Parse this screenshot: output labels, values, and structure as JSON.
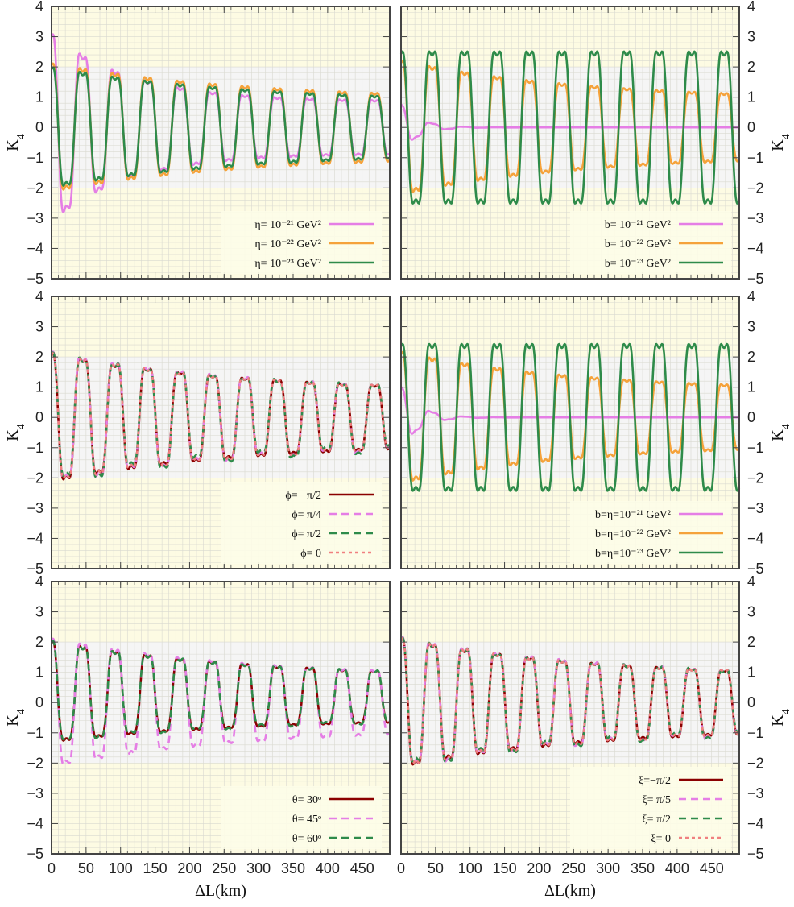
{
  "colors": {
    "panel_bg": "#fdfbe3",
    "band_bg": "#f5f5f5",
    "grid_minor": "#d9d9d0",
    "frame": "#444444",
    "violet": "#e57ee5",
    "orange": "#f5a23a",
    "green": "#2e8b4a",
    "dark_red": "#8b0000",
    "salmon": "#f08080"
  },
  "chart_data": [
    {
      "type": "line",
      "ylabel": "K4",
      "xlabel": "",
      "xlim": [
        0,
        490
      ],
      "ylim": [
        -5,
        4
      ],
      "grid": true,
      "legend_placement": "bottom-right",
      "series": [
        {
          "name": "η= 10⁻²¹ GeV²",
          "color": "#e57ee5",
          "style": "solid",
          "amplitude": 3.6,
          "decay": 0.004,
          "floor": 1.0,
          "offset": 0.0
        },
        {
          "name": "η= 10⁻²² GeV²",
          "color": "#f5a23a",
          "style": "solid",
          "amplitude": 2.45,
          "decay": 0.0016,
          "floor": 1.05,
          "offset": 0.0
        },
        {
          "name": "η= 10⁻²³ GeV²",
          "color": "#2e8b4a",
          "style": "solid",
          "amplitude": 2.3,
          "decay": 0.0016,
          "floor": 0.95,
          "offset": 0.0
        }
      ]
    },
    {
      "type": "line",
      "ylabel": "K4",
      "xlabel": "",
      "xlim": [
        0,
        490
      ],
      "ylim": [
        -5,
        4
      ],
      "grid": true,
      "legend_placement": "bottom-right",
      "series": [
        {
          "name": "b= 10⁻²¹ GeV²",
          "color": "#e57ee5",
          "style": "solid",
          "amplitude": 0.9,
          "decay": 0.018,
          "floor": 0.0,
          "offset": 0.0
        },
        {
          "name": "b= 10⁻²² GeV²",
          "color": "#f5a23a",
          "style": "solid",
          "amplitude": 2.55,
          "decay": 0.0017,
          "floor": 1.05,
          "offset": 0.0
        },
        {
          "name": "b= 10⁻²³ GeV²",
          "color": "#2e8b4a",
          "style": "solid",
          "amplitude": 2.9,
          "decay": 0.0,
          "floor": 2.7,
          "offset": 0.0
        }
      ]
    },
    {
      "type": "line",
      "ylabel": "K4",
      "xlabel": "",
      "xlim": [
        0,
        490
      ],
      "ylim": [
        -5,
        4
      ],
      "grid": true,
      "legend_placement": "bottom-right",
      "series": [
        {
          "name": "ϕ= −π/2",
          "color": "#8b0000",
          "style": "solid",
          "amplitude": 2.45,
          "decay": 0.0016,
          "floor": 0.95,
          "offset": 0.0
        },
        {
          "name": "ϕ= π/4",
          "color": "#e57ee5",
          "style": "dashed",
          "amplitude": 2.5,
          "decay": 0.0016,
          "floor": 0.95,
          "offset": 0.06
        },
        {
          "name": "ϕ= π/2",
          "color": "#2e8b4a",
          "style": "dashed",
          "amplitude": 2.45,
          "decay": 0.0016,
          "floor": 0.95,
          "offset": 0.12
        },
        {
          "name": "ϕ= 0",
          "color": "#f08080",
          "style": "dotted",
          "amplitude": 2.45,
          "decay": 0.0016,
          "floor": 0.95,
          "offset": 0.03
        }
      ]
    },
    {
      "type": "line",
      "ylabel": "K4",
      "xlabel": "",
      "xlim": [
        0,
        490
      ],
      "ylim": [
        -5,
        4
      ],
      "grid": true,
      "legend_placement": "bottom-right",
      "series": [
        {
          "name": "b=η=10⁻²¹ GeV²",
          "color": "#e57ee5",
          "style": "solid",
          "amplitude": 1.2,
          "decay": 0.018,
          "floor": 0.0,
          "offset": 0.0
        },
        {
          "name": "b=η=10⁻²² GeV²",
          "color": "#f5a23a",
          "style": "solid",
          "amplitude": 2.5,
          "decay": 0.0017,
          "floor": 1.0,
          "offset": 0.0
        },
        {
          "name": "b=η=10⁻²³ GeV²",
          "color": "#2e8b4a",
          "style": "solid",
          "amplitude": 2.8,
          "decay": 0.0,
          "floor": 2.6,
          "offset": 0.0
        }
      ]
    },
    {
      "type": "line",
      "ylabel": "K4",
      "xlabel": "ΔL(km)",
      "xlim": [
        0,
        490
      ],
      "ylim": [
        -5,
        4
      ],
      "grid": true,
      "legend_placement": "bottom-right",
      "series": [
        {
          "name": "θ= 30ᵒ",
          "color": "#8b0000",
          "style": "solid",
          "amplitude": 2.35,
          "decay": 0.0016,
          "floor": 0.95,
          "offset": 0.0,
          "center": 0.4
        },
        {
          "name": "θ= 45ᵒ",
          "color": "#e57ee5",
          "style": "dashed",
          "amplitude": 2.45,
          "decay": 0.0016,
          "floor": 0.95,
          "offset": 0.0,
          "center": 0.0
        },
        {
          "name": "θ= 60ᵒ",
          "color": "#2e8b4a",
          "style": "dashed",
          "amplitude": 2.35,
          "decay": 0.0016,
          "floor": 0.95,
          "offset": 0.04,
          "center": 0.4
        }
      ]
    },
    {
      "type": "line",
      "ylabel": "K4",
      "xlabel": "ΔL(km)",
      "xlim": [
        0,
        490
      ],
      "ylim": [
        -5,
        4
      ],
      "grid": true,
      "legend_placement": "bottom-right",
      "series": [
        {
          "name": "ξ=−π/2",
          "color": "#8b0000",
          "style": "solid",
          "amplitude": 2.45,
          "decay": 0.0016,
          "floor": 0.95,
          "offset": 0.0
        },
        {
          "name": "ξ= π/5",
          "color": "#e57ee5",
          "style": "dashed",
          "amplitude": 2.5,
          "decay": 0.0016,
          "floor": 0.95,
          "offset": 0.06
        },
        {
          "name": "ξ= π/2",
          "color": "#2e8b4a",
          "style": "dashed",
          "amplitude": 2.45,
          "decay": 0.0016,
          "floor": 0.95,
          "offset": 0.1
        },
        {
          "name": "ξ= 0",
          "color": "#f08080",
          "style": "dotted",
          "amplitude": 2.45,
          "decay": 0.0016,
          "floor": 0.95,
          "offset": 0.03
        }
      ]
    }
  ],
  "axis": {
    "x_ticks": [
      "0",
      "50",
      "100",
      "150",
      "200",
      "250",
      "300",
      "350",
      "400",
      "450"
    ],
    "y_ticks": [
      "4",
      "3",
      "2",
      "1",
      "0",
      "−1",
      "−2",
      "−3",
      "−4",
      "−5"
    ],
    "y_label": "K",
    "y_label_sub": "4",
    "x_label": "ΔL(km)"
  }
}
